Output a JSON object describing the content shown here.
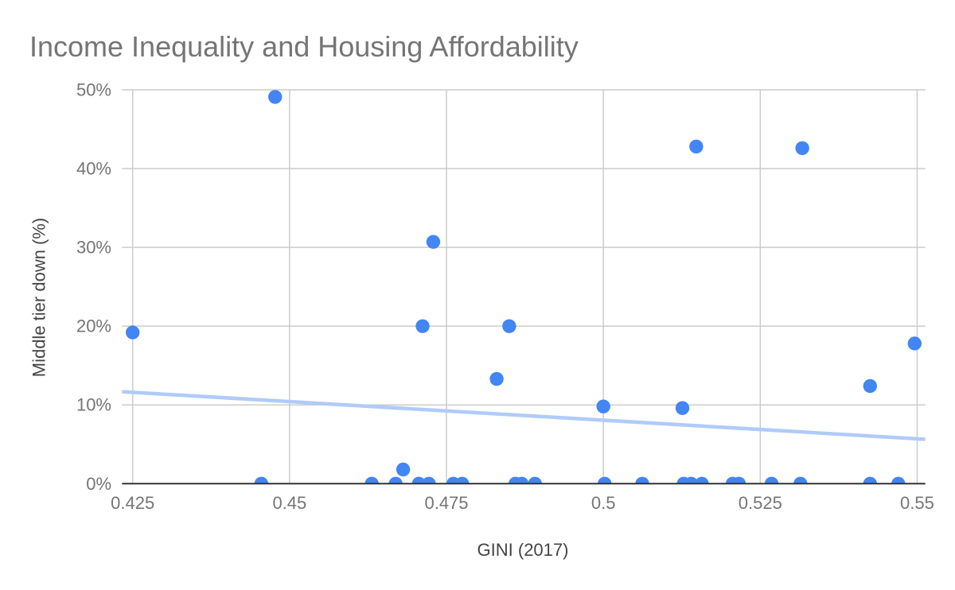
{
  "chart_data": {
    "type": "scatter",
    "title": "Income Inequality and Housing Affordability",
    "xlabel": "GINI (2017)",
    "ylabel": "Middle tier down (%)",
    "xlim": [
      0.4233,
      0.5513
    ],
    "ylim": [
      0,
      50
    ],
    "grid": true,
    "legend": "none",
    "xticks": [
      0.425,
      0.45,
      0.475,
      0.5,
      0.525,
      0.55
    ],
    "xtick_labels": [
      "0.425",
      "0.45",
      "0.475",
      "0.5",
      "0.525",
      "0.55"
    ],
    "yticks": [
      0,
      10,
      20,
      30,
      40,
      50
    ],
    "ytick_labels": [
      "0%",
      "10%",
      "20%",
      "30%",
      "40%",
      "50%"
    ],
    "series": [
      {
        "name": "Middle tier down (%)",
        "color": "#4285F4",
        "points": [
          {
            "x": 0.425,
            "y": 19.2
          },
          {
            "x": 0.4477,
            "y": 49.1
          },
          {
            "x": 0.4681,
            "y": 1.8
          },
          {
            "x": 0.4712,
            "y": 20.0
          },
          {
            "x": 0.4729,
            "y": 30.7
          },
          {
            "x": 0.483,
            "y": 13.3
          },
          {
            "x": 0.485,
            "y": 20.0
          },
          {
            "x": 0.5,
            "y": 9.8
          },
          {
            "x": 0.5126,
            "y": 9.6
          },
          {
            "x": 0.5148,
            "y": 42.8
          },
          {
            "x": 0.5317,
            "y": 42.6
          },
          {
            "x": 0.5425,
            "y": 12.4
          },
          {
            "x": 0.5496,
            "y": 17.8
          },
          {
            "x": 0.4455,
            "y": 0
          },
          {
            "x": 0.4631,
            "y": 0
          },
          {
            "x": 0.4669,
            "y": 0
          },
          {
            "x": 0.4706,
            "y": 0
          },
          {
            "x": 0.4722,
            "y": 0
          },
          {
            "x": 0.4761,
            "y": 0
          },
          {
            "x": 0.4775,
            "y": 0
          },
          {
            "x": 0.486,
            "y": 0
          },
          {
            "x": 0.487,
            "y": 0
          },
          {
            "x": 0.4891,
            "y": 0
          },
          {
            "x": 0.5002,
            "y": 0
          },
          {
            "x": 0.5062,
            "y": 0
          },
          {
            "x": 0.5128,
            "y": 0
          },
          {
            "x": 0.514,
            "y": 0
          },
          {
            "x": 0.5157,
            "y": 0
          },
          {
            "x": 0.5206,
            "y": 0
          },
          {
            "x": 0.5216,
            "y": 0
          },
          {
            "x": 0.5268,
            "y": 0
          },
          {
            "x": 0.5314,
            "y": 0
          },
          {
            "x": 0.5425,
            "y": 0
          },
          {
            "x": 0.547,
            "y": 0
          }
        ]
      }
    ],
    "trendline": {
      "type": "linear",
      "color": "#B0CBFA",
      "slope": -47.2,
      "intercept": 31.66
    }
  }
}
